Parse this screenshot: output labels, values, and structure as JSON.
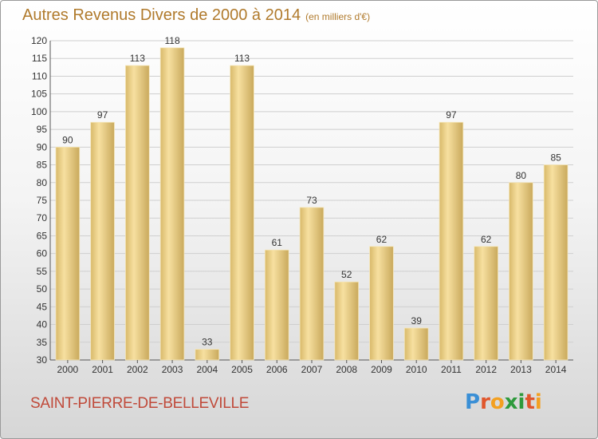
{
  "title": "Autres Revenus Divers de 2000 à 2014",
  "subtitle": "(en milliers d'€)",
  "location": "SAINT-PIERRE-DE-BELLEVILLE",
  "brand": {
    "letters": [
      "P",
      "r",
      "o",
      "x",
      "i",
      "t",
      "i"
    ],
    "colors": [
      "#3a8fd6",
      "#e0562c",
      "#f3a021",
      "#2e9a3c",
      "#2e9a3c",
      "#e0562c",
      "#f3a021"
    ]
  },
  "colors": {
    "title": "#b07a2c",
    "location": "#c04a3a",
    "bar_light": "#f7e0a0",
    "bar_dark": "#c9a95c",
    "grid": "#cfcfcf"
  },
  "chart_data": {
    "type": "bar",
    "categories": [
      "2000",
      "2001",
      "2002",
      "2003",
      "2004",
      "2005",
      "2006",
      "2007",
      "2008",
      "2009",
      "2010",
      "2011",
      "2012",
      "2013",
      "2014"
    ],
    "values": [
      90,
      97,
      113,
      118,
      33,
      113,
      61,
      73,
      52,
      62,
      39,
      97,
      62,
      80,
      85
    ],
    "yticks": [
      30,
      35,
      40,
      45,
      50,
      55,
      60,
      65,
      70,
      75,
      80,
      85,
      90,
      95,
      100,
      105,
      110,
      115,
      120
    ],
    "ylim": [
      30,
      120
    ],
    "grid": true,
    "data_labels": true,
    "title": "Autres Revenus Divers de 2000 à 2014",
    "xlabel": "",
    "ylabel": ""
  }
}
